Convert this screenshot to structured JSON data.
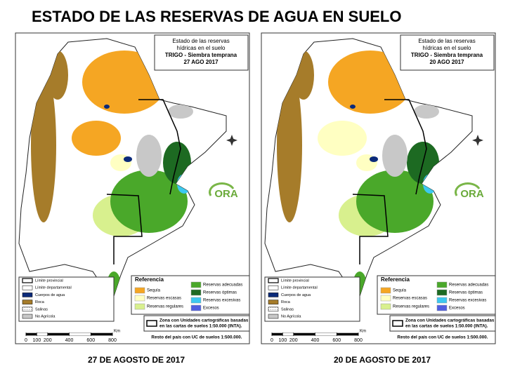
{
  "title": "ESTADO DE LAS RESERVAS DE AGUA EN SUELO",
  "maps": [
    {
      "box_title": [
        "Estado de las reservas",
        "hídricas en el suelo",
        "TRIGO - Siembra temprana",
        "27 AGO 2017"
      ],
      "caption": "27 DE AGOSTO DE 2017"
    },
    {
      "box_title": [
        "Estado de las reservas",
        "hídricas en el suelo",
        "TRIGO - Siembra temprana",
        "20 AGO 2017"
      ],
      "caption": "20 DE AGOSTO DE 2017"
    }
  ],
  "layers_legend": [
    {
      "label": "Límite provincial",
      "color": "#ffffff"
    },
    {
      "label": "Límite departamental",
      "color": "#ffffff"
    },
    {
      "label": "Cuerpos de agua",
      "color": "#0b2a7a"
    },
    {
      "label": "Roca",
      "color": "#a67c2a"
    },
    {
      "label": "Salinas",
      "color": "#ffffff"
    },
    {
      "label": "No Agrícola",
      "color": "#c8c8c8"
    }
  ],
  "reference": {
    "title": "Referencia",
    "items": [
      {
        "label": "Sequía",
        "color": "#f5a623"
      },
      {
        "label": "Reservas escasas",
        "color": "#ffffc2"
      },
      {
        "label": "Reservas regulares",
        "color": "#d8f08e"
      },
      {
        "label": "Reservas adecuadas",
        "color": "#4aa82a"
      },
      {
        "label": "Reservas óptimas",
        "color": "#1d6a22"
      },
      {
        "label": "Reservas excesivas",
        "color": "#3cc8f0"
      },
      {
        "label": "Excesos",
        "color": "#4f5ee0"
      }
    ]
  },
  "note": [
    "Zona con Unidades cartográficas basadas",
    "en las cartas de suelos 1:50.000 (INTA)."
  ],
  "rest_note": "Resto del país con UC de suelos 1:500.000.",
  "scale": {
    "unit": "Km",
    "ticks": [
      0,
      100,
      200,
      400,
      600,
      800
    ]
  },
  "logo": "ORA"
}
